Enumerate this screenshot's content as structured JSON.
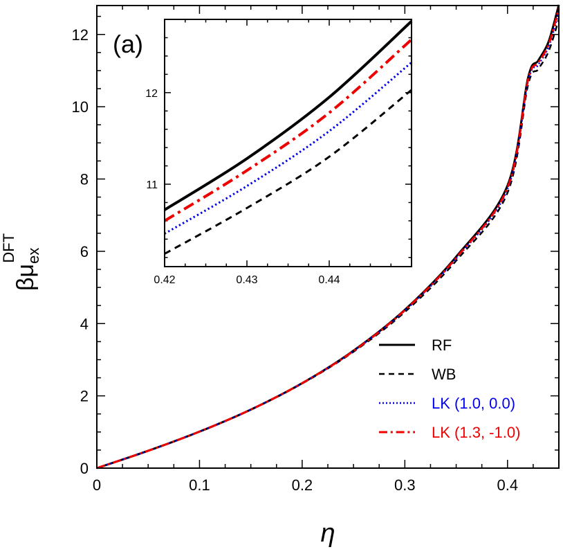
{
  "chart_data": {
    "type": "line",
    "panel_label": "(a)",
    "xlabel": "η",
    "ylabel": {
      "main": "βμ",
      "sub": "ex",
      "sup": "DFT"
    },
    "xlim": [
      0,
      0.45
    ],
    "ylim": [
      0,
      12.8
    ],
    "xticks": [
      0,
      0.1,
      0.2,
      0.3,
      0.4
    ],
    "xtick_labels": [
      "0",
      "0.1",
      "0.2",
      "0.3",
      "0.4"
    ],
    "yticks": [
      0,
      2,
      4,
      6,
      8,
      10,
      12
    ],
    "ytick_labels": [
      "0",
      "2",
      "4",
      "6",
      "8",
      "10",
      "12"
    ],
    "legend_position": "bottom-right",
    "series": [
      {
        "name": "RF",
        "color": "#000000",
        "dash": "solid",
        "width": 3,
        "x": [
          0,
          0.05,
          0.1,
          0.15,
          0.2,
          0.25,
          0.3,
          0.35,
          0.4,
          0.42,
          0.43,
          0.44,
          0.45
        ],
        "y": [
          0,
          0.48,
          1.01,
          1.62,
          2.35,
          3.25,
          4.38,
          5.85,
          7.82,
          10.8,
          11.28,
          11.8,
          12.82
        ]
      },
      {
        "name": "WB",
        "color": "#000000",
        "dash": "dashed",
        "width": 2.5,
        "x": [
          0,
          0.05,
          0.1,
          0.15,
          0.2,
          0.25,
          0.3,
          0.35,
          0.4,
          0.42,
          0.43,
          0.44,
          0.45
        ],
        "y": [
          0,
          0.48,
          1.01,
          1.62,
          2.34,
          3.22,
          4.32,
          5.74,
          7.62,
          10.6,
          11.04,
          11.53,
          12.42
        ]
      },
      {
        "name": "LK (1.0, 0.0)",
        "color": "#0000ee",
        "dash": "dotted",
        "width": 2.5,
        "x": [
          0,
          0.05,
          0.1,
          0.15,
          0.2,
          0.25,
          0.3,
          0.35,
          0.4,
          0.42,
          0.43,
          0.44,
          0.45
        ],
        "y": [
          0,
          0.48,
          1.01,
          1.62,
          2.35,
          3.24,
          4.36,
          5.8,
          7.72,
          10.7,
          11.16,
          11.66,
          12.62
        ]
      },
      {
        "name": "LK (1.3, -1.0)",
        "color": "#ee0000",
        "dash": "dashdot",
        "width": 3,
        "x": [
          0,
          0.05,
          0.1,
          0.15,
          0.2,
          0.25,
          0.3,
          0.35,
          0.4,
          0.42,
          0.43,
          0.44,
          0.45
        ],
        "y": [
          0,
          0.48,
          1.01,
          1.62,
          2.35,
          3.24,
          4.37,
          5.82,
          7.76,
          10.74,
          11.22,
          11.72,
          12.72
        ]
      }
    ],
    "inset": {
      "xlim": [
        0.42,
        0.45
      ],
      "ylim": [
        10.1,
        12.8
      ],
      "xticks": [
        0.42,
        0.43,
        0.44
      ],
      "xtick_labels": [
        "0.42",
        "0.43",
        "0.44"
      ],
      "yticks": [
        11,
        12
      ],
      "ytick_labels": [
        "11",
        "12"
      ],
      "series": [
        {
          "name": "RF",
          "color": "#000000",
          "dash": "solid",
          "width": 4,
          "x": [
            0.42,
            0.43,
            0.44,
            0.45
          ],
          "y": [
            10.72,
            11.28,
            11.95,
            12.78
          ]
        },
        {
          "name": "WB",
          "color": "#000000",
          "dash": "dashed",
          "width": 3,
          "x": [
            0.42,
            0.43,
            0.44,
            0.45
          ],
          "y": [
            10.24,
            10.74,
            11.3,
            12.03
          ]
        },
        {
          "name": "LK (1.0, 0.0)",
          "color": "#0000ee",
          "dash": "dotted",
          "width": 3,
          "x": [
            0.42,
            0.43,
            0.44,
            0.45
          ],
          "y": [
            10.46,
            10.98,
            11.58,
            12.33
          ]
        },
        {
          "name": "LK (1.3, -1.0)",
          "color": "#ee0000",
          "dash": "dashdot",
          "width": 4,
          "x": [
            0.42,
            0.43,
            0.44,
            0.45
          ],
          "y": [
            10.6,
            11.15,
            11.78,
            12.58
          ]
        }
      ]
    }
  }
}
